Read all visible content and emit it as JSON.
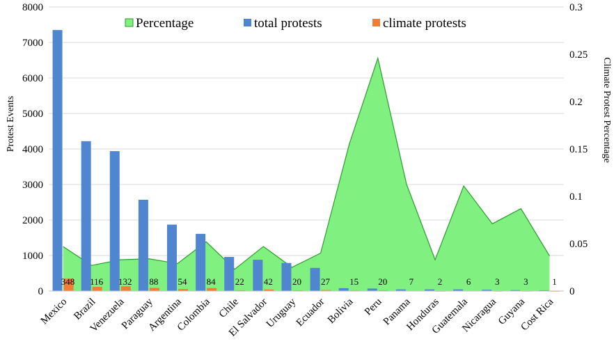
{
  "chart_data": {
    "type": "bar",
    "categories": [
      "Mexico",
      "Brazil",
      "Venezuela",
      "Paraguay",
      "Argentina",
      "Colombia",
      "Chile",
      "El Salvador",
      "Uruguay",
      "Ecuador",
      "Bolivia",
      "Peru",
      "Panama",
      "Honduras",
      "Guatemala",
      "Nicaragua",
      "Guyana",
      "Cost Rica"
    ],
    "series": [
      {
        "name": "total protests",
        "kind": "bar",
        "axis": "left",
        "color": "#4f86cf",
        "values": [
          7350,
          4220,
          3940,
          2570,
          1870,
          1610,
          960,
          880,
          790,
          650,
          80,
          70,
          45,
          45,
          45,
          35,
          25,
          20
        ]
      },
      {
        "name": "climate protests",
        "kind": "bar",
        "axis": "left",
        "color": "#ef7d35",
        "values": [
          348,
          116,
          132,
          88,
          54,
          84,
          22,
          42,
          20,
          27,
          15,
          20,
          7,
          2,
          6,
          3,
          3,
          1
        ]
      },
      {
        "name": "Percentage",
        "kind": "area",
        "axis": "right",
        "color": "#80f080",
        "stroke": "#2f9a2f",
        "values": [
          0.047,
          0.027,
          0.033,
          0.034,
          0.029,
          0.052,
          0.023,
          0.047,
          0.025,
          0.04,
          0.155,
          0.246,
          0.113,
          0.033,
          0.111,
          0.071,
          0.087,
          0.037
        ]
      }
    ],
    "data_labels": [
      "348",
      "116",
      "132",
      "88",
      "54",
      "84",
      "22",
      "42",
      "20",
      "27",
      "15",
      "20",
      "7",
      "2",
      "6",
      "3",
      "3",
      "1"
    ],
    "ylabel": "Protest Events",
    "y2label": "Climate  Protest Percentage",
    "ylim": [
      0,
      8000
    ],
    "yticks": [
      "0",
      "1000",
      "2000",
      "3000",
      "4000",
      "5000",
      "6000",
      "7000",
      "8000"
    ],
    "y2lim": [
      0,
      0.3
    ],
    "y2ticks": [
      "0",
      "0.05",
      "0.1",
      "0.15",
      "0.2",
      "0.25",
      "0.3"
    ],
    "legend": {
      "position": "top-center",
      "entries": [
        "Percentage",
        "total protests",
        "climate protests"
      ]
    },
    "grid": true
  }
}
